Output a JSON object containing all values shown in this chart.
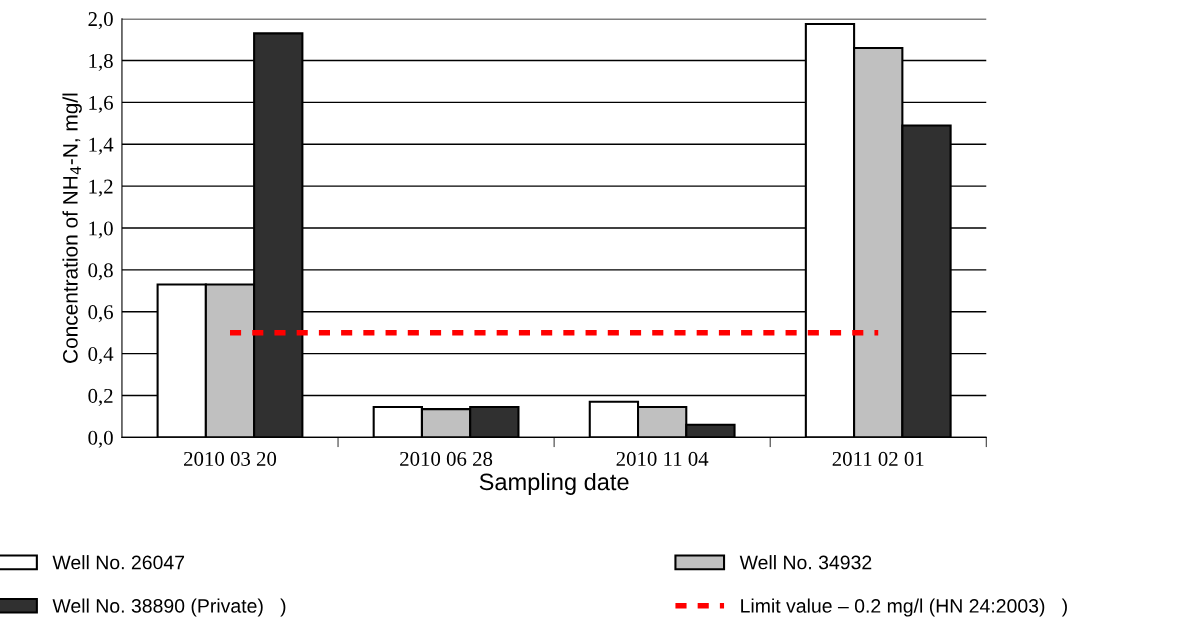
{
  "chart_data": {
    "type": "bar",
    "xlabel": "Sampling date",
    "ylabel": "Concentration of NH$_{4}$-N, mg/l",
    "categories": [
      "2010 03 20",
      "2010 06 28",
      "2010 11 04",
      "2011 02 01"
    ],
    "series": [
      {
        "name": "Well No. 26047",
        "color": "#ffffff",
        "values": [
          0.73,
          0.145,
          0.17,
          1.975
        ]
      },
      {
        "name": "Well No. 34932",
        "color": "#c0c0c0",
        "values": [
          0.73,
          0.135,
          0.145,
          1.86
        ]
      },
      {
        "name": "Well No. 38890 (Private)   )",
        "color": "#303030",
        "values": [
          1.93,
          0.145,
          0.06,
          1.49
        ]
      },
      {
        "name": "Limit value – 0.2 mg/l (HN 24:2003)   )",
        "color": "#ff0000",
        "type": "line",
        "line_style": "dashed",
        "values": [
          0.5,
          0.5,
          0.5,
          0.5
        ]
      }
    ],
    "ylim": [
      0,
      2.0
    ],
    "yticks": [
      {
        "value": 0,
        "label": "0,0"
      },
      {
        "value": 0.2,
        "label": "0,2"
      },
      {
        "value": 0.4,
        "label": "0,4"
      },
      {
        "value": 0.6,
        "label": "0,6"
      },
      {
        "value": 0.8,
        "label": "0,8"
      },
      {
        "value": 1.0,
        "label": "1,0"
      },
      {
        "value": 1.2,
        "label": "1,2"
      },
      {
        "value": 1.4,
        "label": "1,4"
      },
      {
        "value": 1.6,
        "label": "1,6"
      },
      {
        "value": 1.8,
        "label": "1,8"
      },
      {
        "value": 2.0,
        "label": "2,0"
      }
    ],
    "grid": "y",
    "legend": "bottom"
  }
}
